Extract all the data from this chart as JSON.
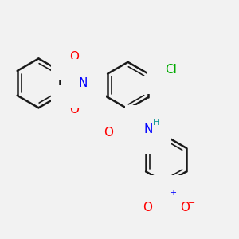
{
  "background_color": "#f2f2f2",
  "bond_color": "#1a1a1a",
  "bond_width": 1.8,
  "atom_colors": {
    "O": "#ff0000",
    "N": "#0000ff",
    "Cl": "#00aa00",
    "H": "#009090",
    "C": "#1a1a1a"
  },
  "font_size_atoms": 11,
  "font_size_small": 8
}
